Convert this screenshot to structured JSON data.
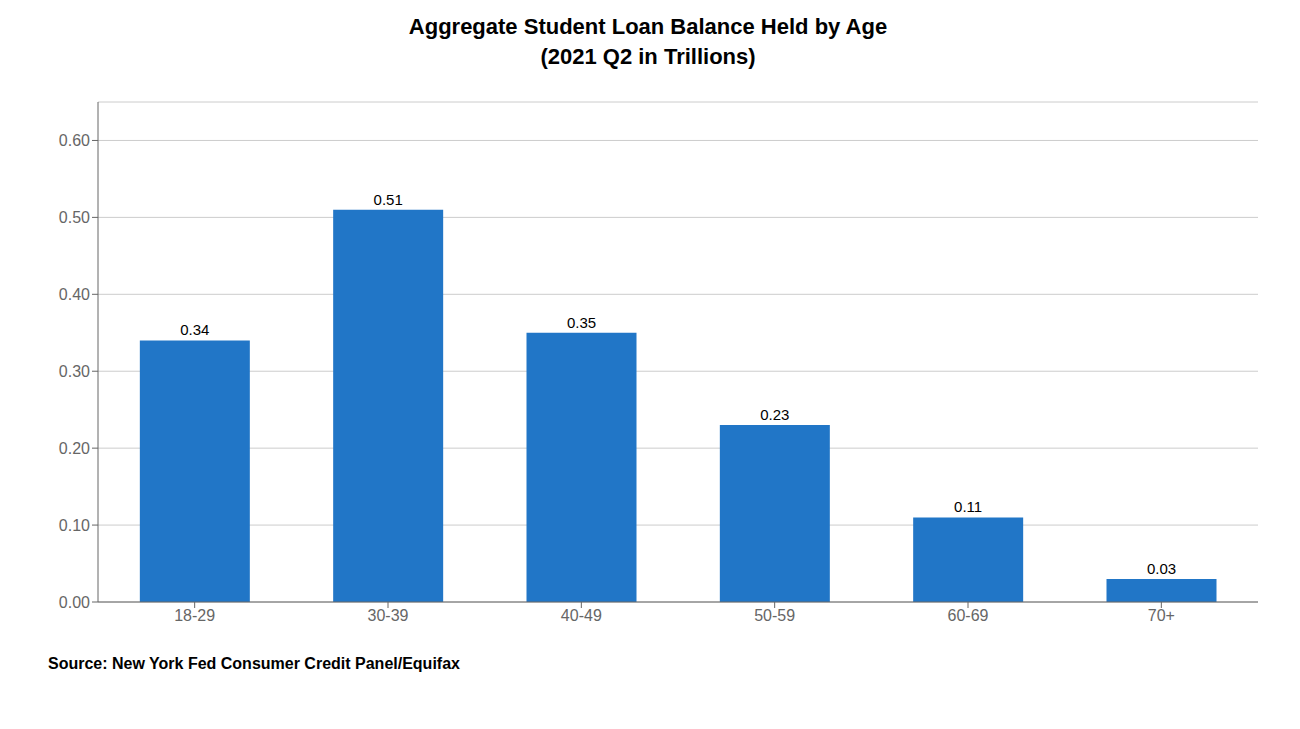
{
  "chart_data": {
    "type": "bar",
    "title": "Aggregate Student Loan Balance Held by Age",
    "subtitle": "(2021 Q2 in Trillions)",
    "annotations": [
      "Source: New York Fed Consumer Credit Panel/Equifax"
    ],
    "categories": [
      "18-29",
      "30-39",
      "40-49",
      "50-59",
      "60-69",
      "70+"
    ],
    "values": [
      0.34,
      0.51,
      0.35,
      0.23,
      0.11,
      0.03
    ],
    "color": "#2176C7",
    "ylim": [
      0,
      0.65
    ],
    "yticks": [
      {
        "value": 0.0,
        "label": "0.00"
      },
      {
        "value": 0.1,
        "label": "0.10"
      },
      {
        "value": 0.2,
        "label": "0.20"
      },
      {
        "value": 0.3,
        "label": "0.30"
      },
      {
        "value": 0.4,
        "label": "0.40"
      },
      {
        "value": 0.5,
        "label": "0.50"
      },
      {
        "value": 0.6,
        "label": "0.60"
      }
    ],
    "grid": true,
    "data_labels": true
  }
}
